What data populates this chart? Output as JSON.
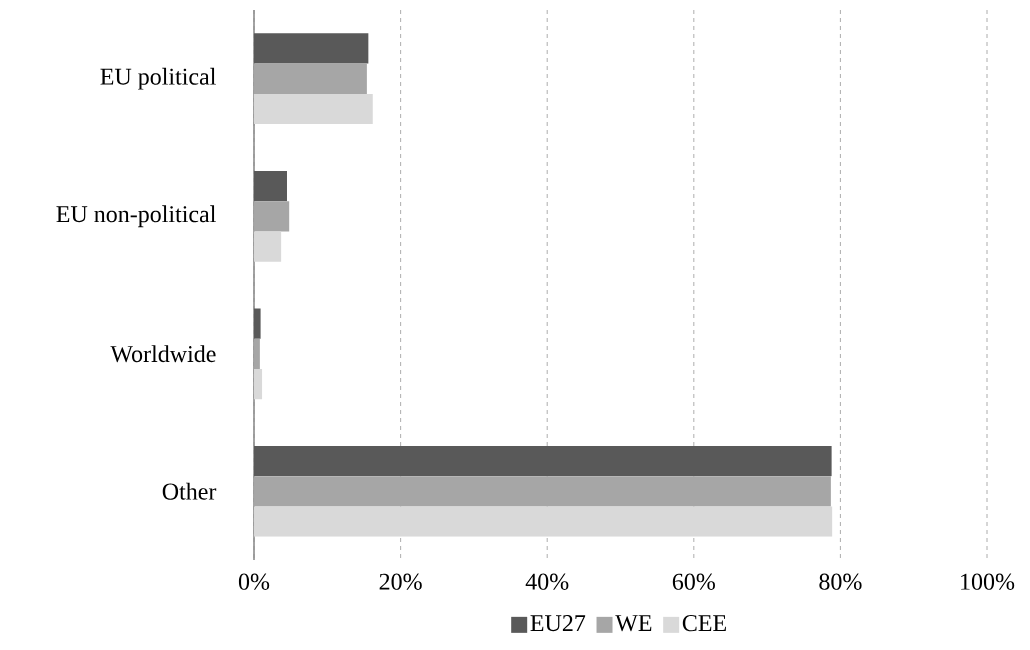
{
  "chart_data": {
    "type": "bar",
    "orientation": "horizontal",
    "categories": [
      "EU political",
      "EU non-political",
      "Worldwide",
      "Other"
    ],
    "series": [
      {
        "name": "EU27",
        "color": "#595959",
        "values": [
          15.6,
          4.5,
          0.9,
          78.8
        ]
      },
      {
        "name": "WE",
        "color": "#a6a6a6",
        "values": [
          15.4,
          4.8,
          0.8,
          78.7
        ]
      },
      {
        "name": "CEE",
        "color": "#d9d9d9",
        "values": [
          16.2,
          3.7,
          1.1,
          78.9
        ]
      }
    ],
    "xlim": [
      0,
      100
    ],
    "xticks": [
      {
        "value": 0,
        "label": "0%"
      },
      {
        "value": 20,
        "label": "20%"
      },
      {
        "value": 40,
        "label": "40%"
      },
      {
        "value": 60,
        "label": "60%"
      },
      {
        "value": 80,
        "label": "80%"
      },
      {
        "value": 100,
        "label": "100%"
      }
    ],
    "grid": "x",
    "legend": "bottom"
  }
}
